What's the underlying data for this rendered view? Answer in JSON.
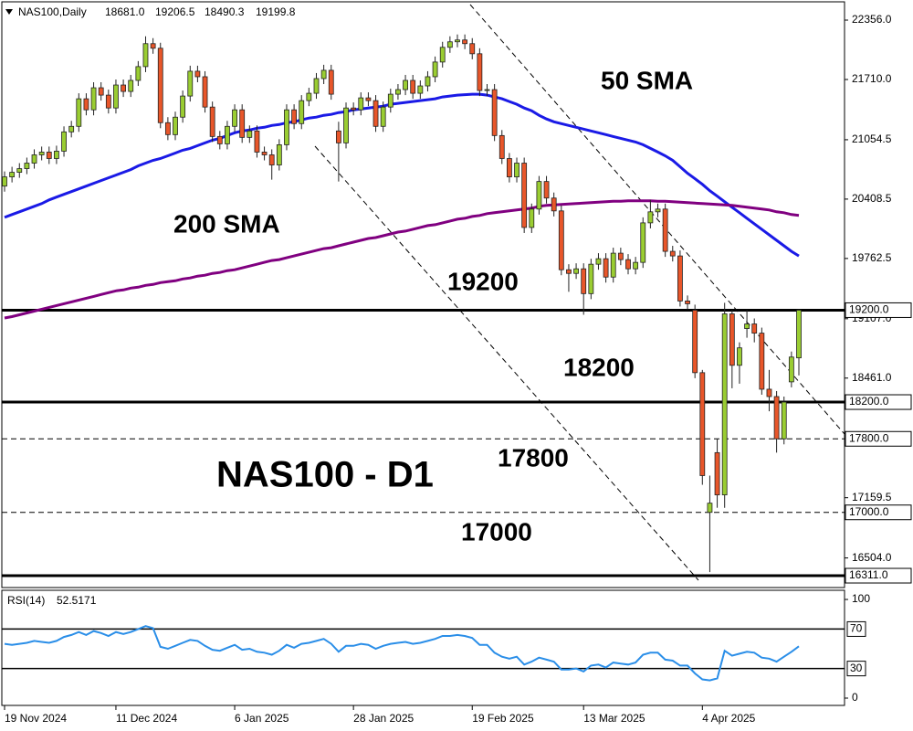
{
  "chart_data": [
    {
      "type": "candlestick",
      "title": "NAS100,Daily",
      "header_labels": [
        "18681.0",
        "19206.5",
        "18490.3",
        "19199.8"
      ],
      "annotation": "NAS100 - D1",
      "categories": [
        "19 Nov 2024",
        null,
        null,
        null,
        null,
        null,
        null,
        null,
        null,
        null,
        null,
        null,
        null,
        null,
        null,
        "11 Dec 2024",
        null,
        null,
        null,
        null,
        null,
        null,
        null,
        null,
        null,
        null,
        null,
        null,
        null,
        null,
        null,
        "6 Jan 2025",
        null,
        null,
        null,
        null,
        null,
        null,
        null,
        null,
        null,
        null,
        null,
        null,
        null,
        null,
        null,
        "28 Jan 2025",
        null,
        null,
        null,
        null,
        null,
        null,
        null,
        null,
        null,
        null,
        null,
        null,
        null,
        null,
        null,
        "19 Feb 2025",
        null,
        null,
        null,
        null,
        null,
        null,
        null,
        null,
        null,
        null,
        null,
        null,
        null,
        null,
        "13 Mar 2025",
        null,
        null,
        null,
        null,
        null,
        null,
        null,
        null,
        null,
        null,
        null,
        null,
        null,
        null,
        null,
        "4 Apr 2025",
        null,
        null,
        null,
        null,
        null,
        null,
        null,
        null,
        null,
        null,
        null,
        null,
        null
      ],
      "series": [
        {
          "up_color": "#9acd32",
          "down_color": "#e8562a",
          "open": [
            20550,
            20650,
            20700,
            20740,
            20800,
            20890,
            20920,
            20850,
            20930,
            21140,
            21200,
            21500,
            21380,
            21620,
            21540,
            21400,
            21650,
            21580,
            21700,
            21850,
            22100,
            22050,
            21240,
            21110,
            21300,
            21530,
            21800,
            21740,
            21410,
            21090,
            21010,
            21200,
            21380,
            21080,
            21150,
            20920,
            20890,
            20780,
            21000,
            21380,
            21230,
            21480,
            21560,
            21720,
            21810,
            21150,
            21020,
            21400,
            21380,
            21510,
            21480,
            21200,
            21410,
            21550,
            21600,
            21700,
            21560,
            21640,
            21740,
            21900,
            22060,
            22120,
            22140,
            22100,
            21990,
            21590,
            21600,
            21100,
            20850,
            20650,
            20800,
            20100,
            20300,
            20600,
            20420,
            20280,
            19640,
            19600,
            19650,
            19380,
            19700,
            19760,
            19560,
            19820,
            19750,
            19650,
            19720,
            20150,
            20270,
            20300,
            19840,
            19790,
            19300,
            19200,
            18520,
            17000,
            17650,
            17190,
            19160,
            18600,
            19000,
            19050,
            18950,
            18340,
            18260,
            17800,
            18420,
            18681
          ],
          "high": [
            20710,
            20760,
            20800,
            20860,
            20950,
            20980,
            20980,
            20990,
            21200,
            21260,
            21560,
            21560,
            21680,
            21680,
            21600,
            21710,
            21710,
            21760,
            21910,
            22180,
            22160,
            22110,
            21300,
            21360,
            21590,
            21860,
            21860,
            21800,
            21470,
            21150,
            21260,
            21440,
            21440,
            21210,
            21210,
            20980,
            20950,
            21060,
            21440,
            21440,
            21540,
            21620,
            21780,
            21870,
            21870,
            21250,
            21460,
            21460,
            21570,
            21570,
            21540,
            21470,
            21610,
            21660,
            21760,
            21760,
            21700,
            21800,
            21960,
            22120,
            22180,
            22200,
            22200,
            22160,
            22050,
            21660,
            21660,
            21160,
            20910,
            20860,
            20860,
            20360,
            20660,
            20660,
            20480,
            20340,
            19700,
            19710,
            19710,
            19760,
            19820,
            19820,
            19880,
            19880,
            19810,
            19780,
            20210,
            20400,
            20360,
            20360,
            19900,
            19850,
            19360,
            19260,
            18550,
            17400,
            17800,
            19280,
            19200,
            18850,
            19200,
            19110,
            19010,
            18550,
            18320,
            18260,
            18750,
            19206.5
          ],
          "low": [
            20490,
            20590,
            20640,
            20680,
            20740,
            20830,
            20790,
            20790,
            20870,
            21080,
            21140,
            21320,
            21320,
            21480,
            21340,
            21340,
            21520,
            21520,
            21640,
            21790,
            21990,
            21180,
            21050,
            21050,
            21240,
            21470,
            21680,
            21350,
            21030,
            20950,
            20950,
            21140,
            21020,
            21020,
            20860,
            20830,
            20620,
            20720,
            20940,
            21170,
            21170,
            21420,
            21500,
            21660,
            21490,
            20600,
            20960,
            21320,
            21320,
            21420,
            21140,
            21140,
            21350,
            21490,
            21540,
            21500,
            21500,
            21580,
            21680,
            21840,
            22000,
            22060,
            22040,
            21930,
            21530,
            21530,
            21040,
            20790,
            20590,
            20590,
            20040,
            20040,
            20240,
            20360,
            20220,
            19580,
            19400,
            19540,
            19150,
            19320,
            19640,
            19500,
            19500,
            19690,
            19590,
            19590,
            19660,
            20090,
            20210,
            19780,
            19730,
            19240,
            19210,
            18460,
            17300,
            16350,
            17050,
            17050,
            18350,
            18400,
            18900,
            18850,
            18280,
            18100,
            17650,
            17740,
            18360,
            18490.3
          ],
          "close": [
            20650,
            20700,
            20740,
            20800,
            20890,
            20920,
            20850,
            20930,
            21140,
            21200,
            21500,
            21380,
            21620,
            21540,
            21400,
            21650,
            21580,
            21700,
            21850,
            22100,
            22050,
            21240,
            21110,
            21300,
            21530,
            21800,
            21740,
            21410,
            21090,
            21010,
            21200,
            21380,
            21080,
            21150,
            20920,
            20890,
            20780,
            21000,
            21380,
            21230,
            21480,
            21560,
            21720,
            21810,
            21550,
            21020,
            21400,
            21380,
            21510,
            21480,
            21200,
            21410,
            21550,
            21600,
            21700,
            21560,
            21640,
            21740,
            21900,
            22060,
            22120,
            22140,
            22100,
            21990,
            21590,
            21600,
            21100,
            20850,
            20650,
            20800,
            20100,
            20300,
            20600,
            20420,
            20280,
            19640,
            19600,
            19650,
            19380,
            19700,
            19760,
            19560,
            19820,
            19750,
            19650,
            19720,
            20150,
            20270,
            20300,
            19840,
            19790,
            19300,
            19270,
            18520,
            17400,
            17100,
            17190,
            19160,
            18600,
            18790,
            19050,
            18950,
            18340,
            18260,
            17800,
            18200,
            18690,
            19199.8
          ]
        },
        {
          "name": "50 SMA",
          "color": "#1a1ae6",
          "values": [
            20210,
            20240,
            20270,
            20300,
            20330,
            20360,
            20400,
            20430,
            20460,
            20490,
            20520,
            20550,
            20580,
            20610,
            20640,
            20670,
            20700,
            20730,
            20770,
            20800,
            20830,
            20850,
            20880,
            20910,
            20940,
            20960,
            20990,
            21020,
            21050,
            21070,
            21100,
            21130,
            21150,
            21160,
            21180,
            21190,
            21210,
            21220,
            21240,
            21250,
            21270,
            21290,
            21300,
            21320,
            21330,
            21350,
            21360,
            21380,
            21390,
            21400,
            21410,
            21420,
            21440,
            21450,
            21460,
            21470,
            21480,
            21490,
            21500,
            21520,
            21530,
            21540,
            21545,
            21550,
            21550,
            21540,
            21520,
            21500,
            21470,
            21440,
            21400,
            21370,
            21320,
            21280,
            21250,
            21230,
            21210,
            21190,
            21170,
            21150,
            21130,
            21110,
            21090,
            21070,
            21050,
            21030,
            21000,
            20960,
            20920,
            20880,
            20830,
            20760,
            20690,
            20630,
            20570,
            20500,
            20440,
            20380,
            20320,
            20260,
            20200,
            20140,
            20080,
            20020,
            19960,
            19900,
            19840,
            19790
          ]
        },
        {
          "name": "200 SMA",
          "color": "#800080",
          "values": [
            19115,
            19130,
            19150,
            19170,
            19190,
            19210,
            19230,
            19250,
            19270,
            19290,
            19310,
            19330,
            19350,
            19370,
            19390,
            19410,
            19420,
            19440,
            19450,
            19470,
            19480,
            19500,
            19510,
            19520,
            19540,
            19550,
            19570,
            19580,
            19600,
            19610,
            19630,
            19640,
            19660,
            19680,
            19700,
            19720,
            19740,
            19750,
            19770,
            19790,
            19810,
            19830,
            19850,
            19870,
            19880,
            19900,
            19920,
            19940,
            19960,
            19980,
            19990,
            20010,
            20030,
            20050,
            20060,
            20080,
            20100,
            20120,
            20130,
            20150,
            20170,
            20190,
            20200,
            20220,
            20230,
            20250,
            20260,
            20270,
            20280,
            20290,
            20300,
            20310,
            20330,
            20340,
            20345,
            20350,
            20355,
            20360,
            20365,
            20370,
            20375,
            20380,
            20385,
            20385,
            20390,
            20390,
            20390,
            20390,
            20385,
            20385,
            20380,
            20375,
            20370,
            20365,
            20360,
            20355,
            20350,
            20345,
            20340,
            20330,
            20320,
            20310,
            20300,
            20290,
            20270,
            20260,
            20240,
            20230
          ]
        }
      ],
      "levels": [
        {
          "value": 19200,
          "label": "19200.0",
          "annotation": "19200",
          "style": "solid"
        },
        {
          "value": 18200,
          "label": "18200.0",
          "annotation": "18200",
          "style": "solid"
        },
        {
          "value": 17800,
          "label": "17800.0",
          "annotation": "17800",
          "style": "dashed"
        },
        {
          "value": 17000,
          "label": "17000.0",
          "annotation": "17000",
          "style": "dashed"
        },
        {
          "value": 16311,
          "label": "16311.0",
          "style": "solid"
        }
      ],
      "ylim": [
        16182,
        22555
      ],
      "yticks": [
        {
          "value": 22356,
          "label": "22356.0"
        },
        {
          "value": 21710,
          "label": "21710.0"
        },
        21054.5,
        20408.5,
        19762.5,
        {
          "value": 19107,
          "label": "19107.0"
        },
        {
          "value": 18461,
          "label": "18461.0"
        },
        17159.5,
        {
          "value": 16504,
          "label": "16504.0"
        }
      ]
    },
    {
      "type": "line",
      "title": "RSI(14)",
      "series": [
        {
          "color": "#2a8ee8",
          "values": [
            55,
            54,
            55,
            56,
            58,
            57,
            56,
            58,
            62,
            64,
            67,
            64,
            68,
            66,
            63,
            67,
            65,
            67,
            70,
            73,
            71,
            52,
            50,
            53,
            56,
            59,
            58,
            53,
            49,
            48,
            51,
            54,
            49,
            50,
            47,
            46,
            44,
            48,
            54,
            51,
            55,
            56,
            58,
            60,
            55,
            47,
            53,
            53,
            55,
            54,
            50,
            53,
            55,
            56,
            57,
            55,
            56,
            58,
            60,
            63,
            63,
            64,
            63,
            61,
            54,
            54,
            46,
            42,
            40,
            42,
            34,
            37,
            41,
            39,
            37,
            29,
            29,
            30,
            27,
            33,
            34,
            31,
            36,
            35,
            34,
            36,
            44,
            46,
            46,
            39,
            38,
            33,
            33,
            25,
            19,
            18,
            20,
            48,
            43,
            45,
            47,
            46,
            41,
            40,
            37,
            42,
            47,
            52.5171
          ]
        }
      ],
      "levels": [
        70,
        30
      ],
      "ylim": [
        -7.4,
        109.3
      ],
      "yticks": [
        100,
        0
      ]
    }
  ]
}
